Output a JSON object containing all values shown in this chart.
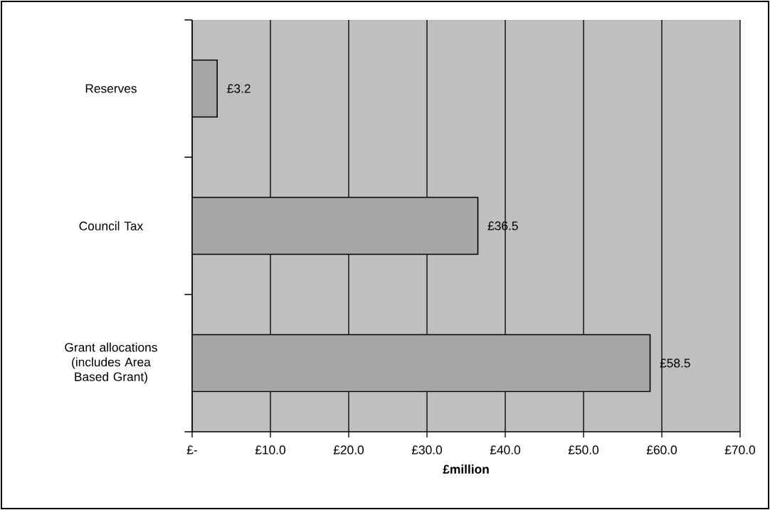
{
  "chart_data": {
    "type": "bar",
    "orientation": "horizontal",
    "categories": [
      "Reserves",
      "Council Tax",
      "Grant allocations (includes Area Based Grant)"
    ],
    "values": [
      3.2,
      36.5,
      58.5
    ],
    "value_labels": [
      "£3.2",
      "£36.5",
      "£58.5"
    ],
    "color": "#a6a6a6",
    "xlabel": "£million",
    "xlim": [
      0,
      70
    ],
    "xticks": [
      {
        "value": 0,
        "label": "£-"
      },
      {
        "value": 10,
        "label": "£10.0"
      },
      {
        "value": 20,
        "label": "£20.0"
      },
      {
        "value": 30,
        "label": "£30.0"
      },
      {
        "value": 40,
        "label": "£40.0"
      },
      {
        "value": 50,
        "label": "£50.0"
      },
      {
        "value": 60,
        "label": "£60.0"
      },
      {
        "value": 70,
        "label": "£70.0"
      }
    ],
    "grid": "x"
  }
}
